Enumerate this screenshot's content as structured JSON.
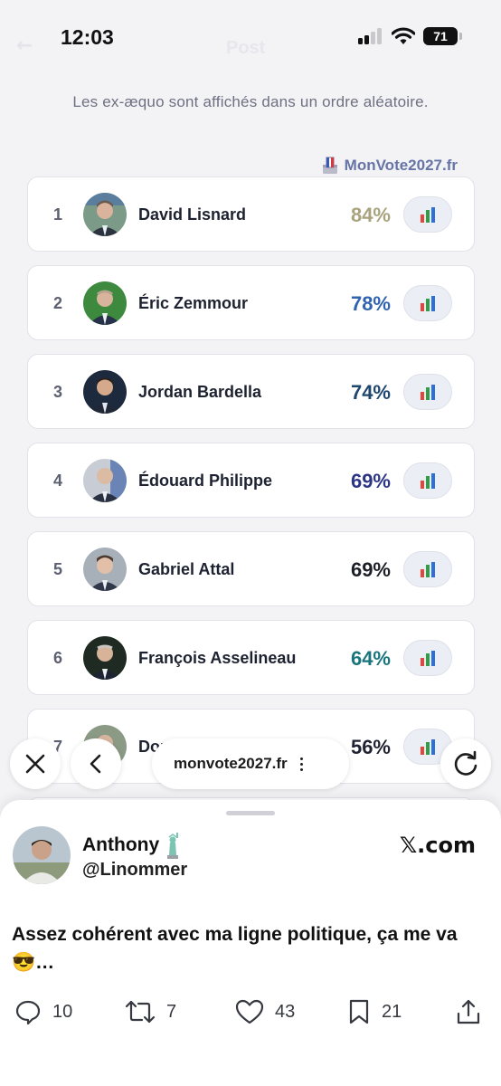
{
  "status_bar": {
    "time": "12:03",
    "battery": "71"
  },
  "header": {
    "back_glyph": "←",
    "title": "Post"
  },
  "notice": "Les ex-æquo sont affichés dans un ordre aléatoire.",
  "brand": {
    "name": "MonVote2027.fr",
    "icon": "ballot-box-icon"
  },
  "candidates": [
    {
      "rank": "1",
      "name": "David Lisnard",
      "percent": "84%",
      "color": "#a8a37c"
    },
    {
      "rank": "2",
      "name": "Éric Zemmour",
      "percent": "78%",
      "color": "#2f62b1"
    },
    {
      "rank": "3",
      "name": "Jordan Bardella",
      "percent": "74%",
      "color": "#1e466e"
    },
    {
      "rank": "4",
      "name": "Édouard Philippe",
      "percent": "69%",
      "color": "#2c3585"
    },
    {
      "rank": "5",
      "name": "Gabriel Attal",
      "percent": "69%",
      "color": "#1c1f28"
    },
    {
      "rank": "6",
      "name": "François Asselineau",
      "percent": "64%",
      "color": "#19757c"
    },
    {
      "rank": "7",
      "name": "Dominique Joulié",
      "percent": "56%",
      "color": "#1f2230"
    }
  ],
  "browser": {
    "url": "monvote2027.fr"
  },
  "post": {
    "author_name": "Anthony",
    "author_handle": "@Linommer",
    "source": "𝕏.com",
    "text": "Assez cohérent avec ma ligne politique, ça me va 😎…",
    "replies": "10",
    "reposts": "7",
    "likes": "43",
    "bookmarks": "21"
  }
}
